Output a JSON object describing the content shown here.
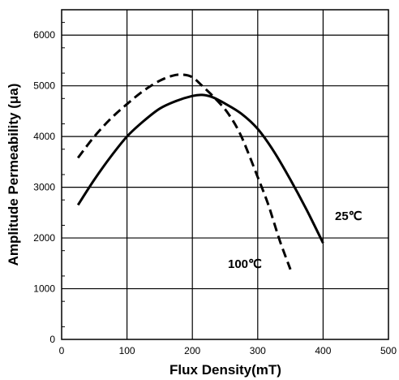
{
  "chart_data": {
    "type": "line",
    "title": "",
    "xlabel": "Flux Density(mT)",
    "ylabel": "Amplitude Permeability (μa)",
    "xlim": [
      0,
      500
    ],
    "ylim": [
      0,
      6500
    ],
    "x_ticks": [
      "0",
      "100",
      "200",
      "300",
      "400",
      "500"
    ],
    "y_ticks": [
      "0",
      "1000",
      "2000",
      "3000",
      "4000",
      "5000",
      "6000"
    ],
    "grid": true,
    "series": [
      {
        "name": "25℃",
        "style": "solid",
        "x": [
          25,
          50,
          75,
          100,
          125,
          150,
          175,
          200,
          215,
          230,
          250,
          275,
          300,
          325,
          350,
          375,
          400
        ],
        "y": [
          2650,
          3150,
          3600,
          4000,
          4300,
          4550,
          4700,
          4800,
          4820,
          4780,
          4650,
          4450,
          4150,
          3700,
          3150,
          2550,
          1900
        ]
      },
      {
        "name": "100℃",
        "style": "dashed",
        "x": [
          25,
          50,
          75,
          100,
          125,
          150,
          170,
          185,
          200,
          215,
          235,
          255,
          275,
          300,
          315,
          325,
          335,
          350
        ],
        "y": [
          3580,
          4000,
          4350,
          4640,
          4900,
          5100,
          5200,
          5220,
          5170,
          5000,
          4750,
          4450,
          4000,
          3200,
          2700,
          2300,
          1900,
          1380
        ]
      }
    ]
  }
}
